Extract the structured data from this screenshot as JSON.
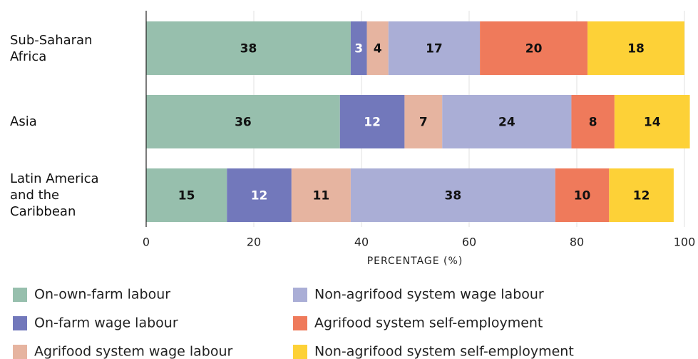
{
  "chart_data": {
    "type": "stacked_barh",
    "categories": [
      "Sub-Saharan Africa",
      "Asia",
      "Latin America and the Caribbean"
    ],
    "series": [
      {
        "name": "On-own-farm labour",
        "color": "#97bfad",
        "label_color": "#111111",
        "values": [
          38,
          36,
          15
        ]
      },
      {
        "name": "On-farm wage labour",
        "color": "#7278bb",
        "label_color": "#ffffff",
        "values": [
          3,
          12,
          12
        ]
      },
      {
        "name": "Agrifood system wage labour",
        "color": "#e6b4a0",
        "label_color": "#111111",
        "values": [
          4,
          7,
          11
        ]
      },
      {
        "name": "Non-agrifood system wage labour",
        "color": "#aaaed6",
        "label_color": "#111111",
        "values": [
          17,
          24,
          38
        ]
      },
      {
        "name": "Agrifood system self-employment",
        "color": "#ef7a5b",
        "label_color": "#111111",
        "values": [
          20,
          8,
          10
        ]
      },
      {
        "name": "Non-agrifood system self-employment",
        "color": "#fdd137",
        "label_color": "#111111",
        "values": [
          18,
          14,
          12
        ]
      }
    ],
    "xlabel": "PERCENTAGE (%)",
    "xlim": [
      0,
      100
    ],
    "xticks": [
      0,
      20,
      40,
      60,
      80,
      100
    ],
    "grid": true
  }
}
